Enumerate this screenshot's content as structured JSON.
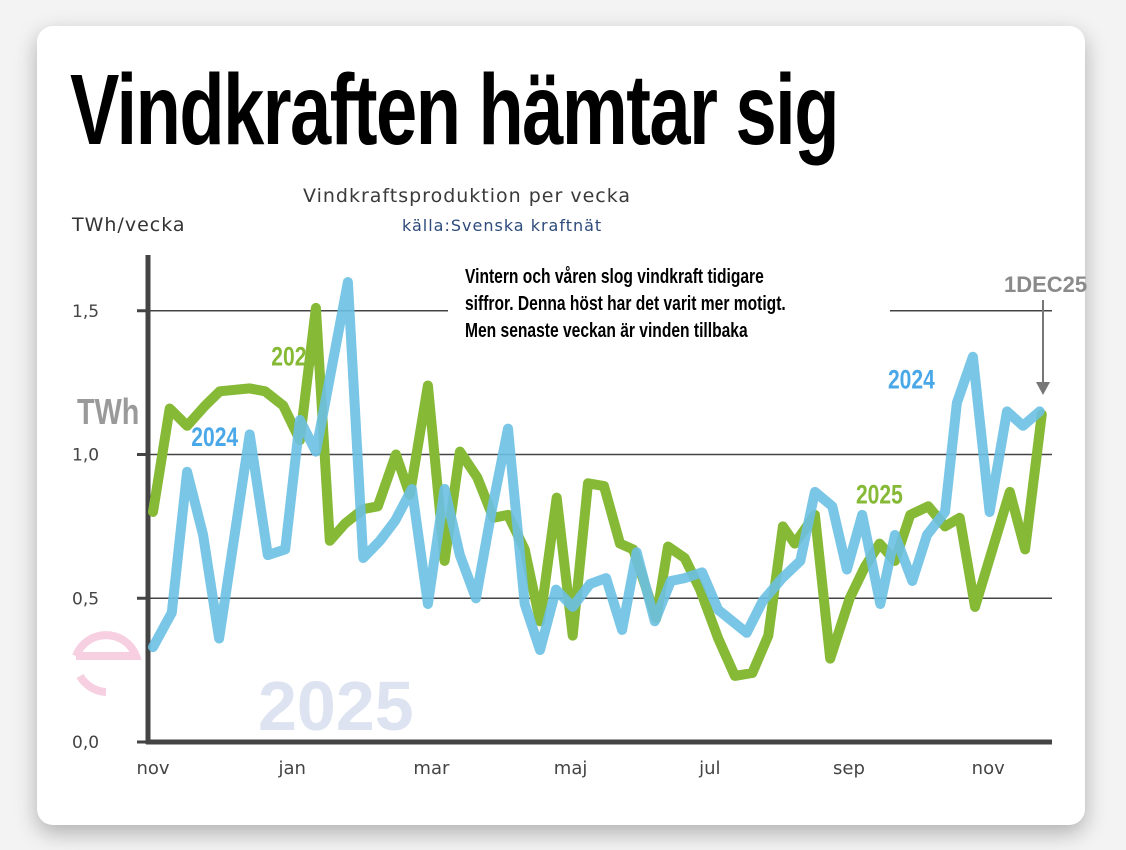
{
  "header": {
    "title": "Vindkraften hämtar sig",
    "subtitle": "Vindkraftsproduktion  per vecka",
    "source": "källa:Svenska kraftnät",
    "unit_label": "TWh/vecka"
  },
  "annotation": {
    "lines": [
      "Vintern och våren slog vindkraft tidigare",
      "siffror. Denna höst har det varit mer motigt.",
      "Men senaste veckan är vinden tillbaka"
    ],
    "date_marker": "1DEC25"
  },
  "watermark": {
    "year": "2025",
    "axis_unit": "TWh"
  },
  "colors": {
    "series_2025": "#86b935",
    "series_2024": "#6cc0e3",
    "label_2024": "#4aa8e8",
    "grid": "#444444",
    "watermark": "#dde3f1"
  },
  "chart_data": {
    "type": "line",
    "title": "Vindkraftsproduktion per vecka",
    "xlabel": "",
    "ylabel": "TWh/vecka",
    "ylim": [
      0,
      1.7
    ],
    "yticks": [
      0.0,
      0.5,
      1.0,
      1.5
    ],
    "ytick_labels": [
      "0,0",
      "0,5",
      "1,0",
      "1,5"
    ],
    "xlim": [
      0,
      12.9
    ],
    "xticks": [
      0,
      2,
      4,
      6,
      8,
      10,
      12
    ],
    "xtick_labels": [
      "nov",
      "jan",
      "mar",
      "maj",
      "jul",
      "sep",
      "nov"
    ],
    "grid": true,
    "x_unit": "months since start of November",
    "series": [
      {
        "name": "2025",
        "label_x": 1.7,
        "label_y": 1.31,
        "x": [
          0,
          0.24,
          0.49,
          0.75,
          0.96,
          1.39,
          1.61,
          1.87,
          2.05,
          2.11,
          2.34,
          2.54,
          2.76,
          3.02,
          3.23,
          3.49,
          3.69,
          3.95,
          4.19,
          4.41,
          4.66,
          4.89,
          5.1,
          5.34,
          5.56,
          5.8,
          6.03,
          6.25,
          6.48,
          6.71,
          6.9,
          7.23,
          7.4,
          7.64,
          7.86,
          8.12,
          8.36,
          8.61,
          8.84,
          9.05,
          9.22,
          9.51,
          9.73,
          10.01,
          10.23,
          10.44,
          10.66,
          10.88,
          11.14,
          11.38,
          11.59,
          11.81,
          12.31,
          12.53,
          12.77
        ],
        "values": [
          0.8,
          1.16,
          1.1,
          1.17,
          1.22,
          1.23,
          1.22,
          1.17,
          1.08,
          1.05,
          1.51,
          0.7,
          0.76,
          0.81,
          0.82,
          1.0,
          0.86,
          1.24,
          0.63,
          1.01,
          0.92,
          0.78,
          0.79,
          0.67,
          0.42,
          0.85,
          0.37,
          0.9,
          0.89,
          0.69,
          0.67,
          0.43,
          0.68,
          0.64,
          0.53,
          0.36,
          0.23,
          0.24,
          0.37,
          0.75,
          0.69,
          0.79,
          0.29,
          0.5,
          0.61,
          0.69,
          0.63,
          0.79,
          0.82,
          0.75,
          0.78,
          0.47,
          0.87,
          0.67,
          1.14
        ]
      },
      {
        "name": "2024",
        "label_x": 0.55,
        "label_y": 1.03,
        "x": [
          0,
          0.27,
          0.49,
          0.72,
          0.95,
          1.39,
          1.65,
          1.9,
          2.11,
          2.34,
          2.8,
          3.02,
          3.26,
          3.48,
          3.72,
          3.95,
          4.19,
          4.41,
          4.64,
          4.87,
          5.1,
          5.34,
          5.56,
          5.79,
          6.03,
          6.28,
          6.51,
          6.74,
          6.95,
          7.21,
          7.44,
          7.64,
          7.89,
          8.12,
          8.53,
          8.76,
          9.04,
          9.3,
          9.51,
          9.76,
          9.97,
          10.19,
          10.45,
          10.66,
          10.91,
          11.12,
          11.38,
          11.55,
          11.78,
          12.02,
          12.27,
          12.5,
          12.74
        ],
        "values": [
          0.33,
          0.45,
          0.94,
          0.72,
          0.36,
          1.07,
          0.65,
          0.67,
          1.12,
          1.01,
          1.6,
          0.64,
          0.7,
          0.77,
          0.88,
          0.48,
          0.88,
          0.65,
          0.5,
          0.81,
          1.09,
          0.48,
          0.32,
          0.53,
          0.47,
          0.55,
          0.57,
          0.39,
          0.66,
          0.42,
          0.56,
          0.57,
          0.59,
          0.46,
          0.38,
          0.49,
          0.57,
          0.63,
          0.87,
          0.82,
          0.6,
          0.79,
          0.48,
          0.72,
          0.56,
          0.72,
          0.8,
          1.18,
          1.34,
          0.8,
          1.15,
          1.1,
          1.15
        ]
      }
    ],
    "extra_labels": [
      {
        "series": "2024",
        "text": "2024",
        "x": 10.56,
        "y": 1.23
      },
      {
        "series": "2025",
        "text": "2025",
        "x": 10.1,
        "y": 0.83
      }
    ]
  }
}
